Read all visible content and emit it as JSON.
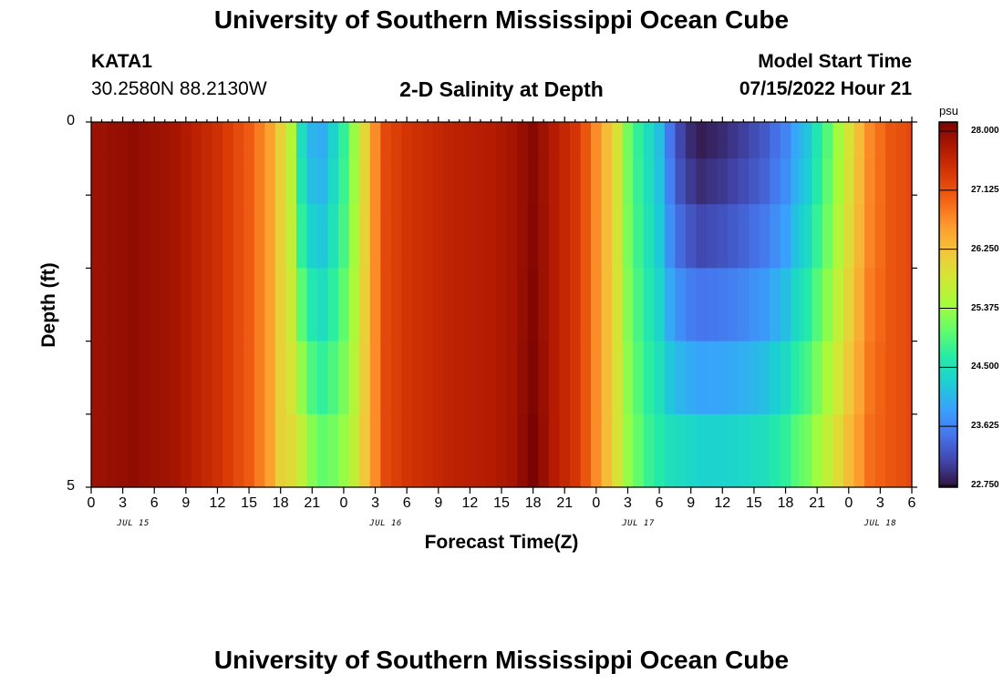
{
  "header": {
    "title": "University of Southern Mississippi Ocean Cube",
    "footer_title": "University of Southern Mississippi Ocean Cube",
    "station_id": "KATA1",
    "station_coords": "30.2580N  88.2130W",
    "plot_title": "2-D Salinity at Depth",
    "model_start_label": "Model Start Time",
    "model_start_value": "07/15/2022 Hour 21"
  },
  "chart_data": {
    "type": "heatmap",
    "title": "2-D Salinity at Depth",
    "xlabel": "Forecast Time(Z)",
    "ylabel": "Depth (ft)",
    "x_tick_labels": [
      "0",
      "3",
      "6",
      "9",
      "12",
      "15",
      "18",
      "21",
      "0",
      "3",
      "6",
      "9",
      "12",
      "15",
      "18",
      "21",
      "0",
      "3",
      "6",
      "9",
      "12",
      "15",
      "18",
      "21",
      "0",
      "3",
      "6"
    ],
    "day_labels": [
      "JUL 15",
      "JUL 16",
      "JUL 17",
      "JUL 18"
    ],
    "y_tick_labels": [
      "0",
      "5"
    ],
    "ylim": [
      0,
      5
    ],
    "xlim_hours": [
      0,
      78
    ],
    "colorbar": {
      "unit": "psu",
      "min": 22.75,
      "max": 28.0,
      "tick_labels": [
        "28.000",
        "27.125",
        "26.250",
        "25.375",
        "24.500",
        "23.625",
        "22.750"
      ],
      "colors": [
        "#30123b",
        "#4145ab",
        "#4675ed",
        "#39a2fc",
        "#1bcfd4",
        "#24eca6",
        "#61fc6c",
        "#a4fc3b",
        "#d1e834",
        "#f3c63a",
        "#fe9b2d",
        "#f36315",
        "#d93806",
        "#b11901",
        "#7a0403"
      ]
    },
    "depth_levels_ft": [
      0.25,
      0.75,
      1.5,
      2.5,
      3.5,
      4.5
    ],
    "time_hours": [
      0,
      1,
      2,
      3,
      4,
      5,
      6,
      7,
      8,
      9,
      10,
      11,
      12,
      13,
      14,
      15,
      16,
      17,
      18,
      19,
      20,
      21,
      22,
      23,
      24,
      25,
      26,
      27,
      28,
      29,
      30,
      31,
      32,
      33,
      34,
      35,
      36,
      37,
      38,
      39,
      40,
      41,
      42,
      43,
      44,
      45,
      46,
      47,
      48,
      49,
      50,
      51,
      52,
      53,
      54,
      55,
      56,
      57,
      58,
      59,
      60,
      61,
      62,
      63,
      64,
      65,
      66,
      67,
      67.5,
      68,
      69,
      70,
      71,
      72,
      73,
      74,
      75,
      76,
      77,
      78
    ],
    "salinity_anchor_hours": [
      0,
      4,
      8,
      12,
      15,
      17,
      18,
      19,
      20,
      21,
      22,
      23,
      24,
      25,
      27,
      28,
      30,
      32,
      34,
      36,
      38,
      40,
      42,
      44,
      46,
      47,
      48,
      49,
      50,
      51,
      52,
      53,
      54,
      55,
      56,
      57,
      58,
      59,
      60,
      62,
      64,
      66,
      68,
      70,
      72,
      74,
      76,
      78
    ],
    "salinity_anchor_surface": [
      27.75,
      27.85,
      27.7,
      27.35,
      26.95,
      26.45,
      26.0,
      25.5,
      24.4,
      24.0,
      23.95,
      24.3,
      24.7,
      25.3,
      26.6,
      27.1,
      27.3,
      27.4,
      27.5,
      27.55,
      27.6,
      27.7,
      27.9,
      27.6,
      27.3,
      27.0,
      26.6,
      26.2,
      25.8,
      25.1,
      24.7,
      24.4,
      24.1,
      23.5,
      23.1,
      22.9,
      22.8,
      22.85,
      22.9,
      23.05,
      23.25,
      23.6,
      24.15,
      24.9,
      25.8,
      26.6,
      27.0,
      27.1
    ],
    "salinity_anchor_bottom": [
      27.75,
      27.85,
      27.7,
      27.35,
      26.95,
      26.45,
      26.0,
      25.9,
      25.6,
      25.2,
      25.0,
      25.1,
      25.3,
      25.6,
      26.6,
      27.1,
      27.3,
      27.4,
      27.5,
      27.55,
      27.6,
      27.7,
      28.0,
      27.6,
      27.3,
      27.0,
      26.6,
      26.2,
      25.8,
      25.3,
      25.0,
      24.75,
      24.6,
      24.45,
      24.4,
      24.35,
      24.3,
      24.3,
      24.3,
      24.35,
      24.45,
      24.7,
      25.1,
      25.6,
      26.2,
      26.8,
      27.0,
      27.1
    ]
  }
}
